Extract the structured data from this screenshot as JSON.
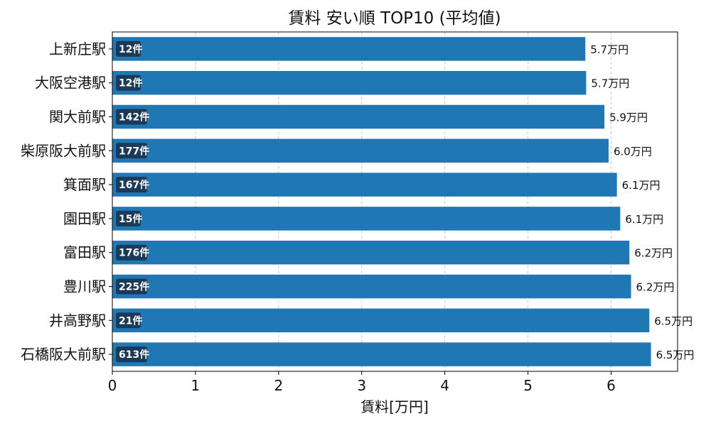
{
  "chart_data": {
    "type": "bar",
    "orientation": "horizontal",
    "title": "賃料 安い順 TOP10 (平均値)",
    "xlabel": "賃料[万円]",
    "ylabel": "",
    "xlim": [
      0,
      6.8
    ],
    "xticks": [
      "0",
      "1",
      "2",
      "3",
      "4",
      "5",
      "6"
    ],
    "grid": "vertical dashed",
    "bar_color": "#1f77b4",
    "badge_color": "#1b3a57",
    "categories": [
      "上新庄駅",
      "大阪空港駅",
      "関大前駅",
      "柴原阪大前駅",
      "箕面駅",
      "園田駅",
      "富田駅",
      "豊川駅",
      "井高野駅",
      "石橋阪大前駅"
    ],
    "values": [
      5.69,
      5.7,
      5.92,
      5.97,
      6.07,
      6.11,
      6.22,
      6.24,
      6.46,
      6.48
    ],
    "value_labels": [
      "5.7万円",
      "5.7万円",
      "5.9万円",
      "6.0万円",
      "6.1万円",
      "6.1万円",
      "6.2万円",
      "6.2万円",
      "6.5万円",
      "6.5万円"
    ],
    "counts": [
      "12件",
      "12件",
      "142件",
      "177件",
      "167件",
      "15件",
      "176件",
      "225件",
      "21件",
      "613件"
    ]
  }
}
